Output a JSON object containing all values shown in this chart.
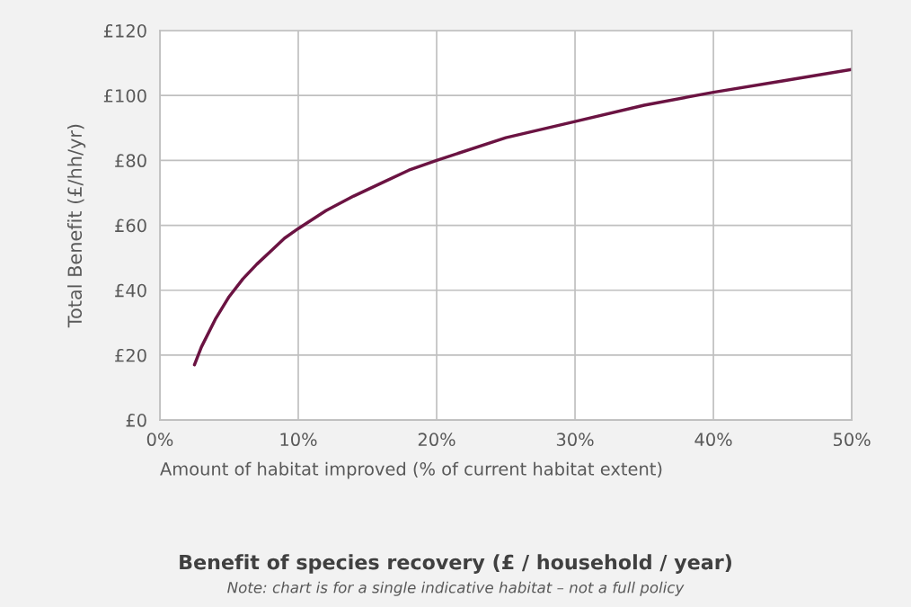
{
  "chart_data": {
    "type": "line",
    "title": "Benefit of species recovery (£ / household / year)",
    "annotations": [
      "Note: chart is for a single indicative habitat – not a full policy"
    ],
    "xlabel": "Amount of habitat improved (% of current habitat extent)",
    "ylabel": "Total Benefit (£/hh/yr)",
    "x": [
      2.5,
      3,
      4,
      5,
      6,
      7,
      8,
      9,
      10,
      12,
      14,
      16,
      18,
      20,
      25,
      30,
      35,
      40,
      45,
      50
    ],
    "series": [
      {
        "color": "#6b1342",
        "values": [
          17,
          22.5,
          31,
          38,
          43.5,
          48,
          52,
          56,
          59,
          64.5,
          69,
          73,
          77,
          80,
          87,
          92,
          97,
          101,
          104.5,
          108
        ]
      }
    ],
    "xlim": [
      0,
      50
    ],
    "xticks": [
      {
        "value": 0,
        "label": "0%"
      },
      {
        "value": 10,
        "label": "10%"
      },
      {
        "value": 20,
        "label": "20%"
      },
      {
        "value": 30,
        "label": "30%"
      },
      {
        "value": 40,
        "label": "40%"
      },
      {
        "value": 50,
        "label": "50%"
      }
    ],
    "ylim": [
      0,
      120
    ],
    "yticks": [
      {
        "value": 0,
        "label": "£0"
      },
      {
        "value": 20,
        "label": "£20"
      },
      {
        "value": 40,
        "label": "£40"
      },
      {
        "value": 60,
        "label": "£60"
      },
      {
        "value": 80,
        "label": "£80"
      },
      {
        "value": 100,
        "label": "£100"
      },
      {
        "value": 120,
        "label": "£120"
      }
    ],
    "grid": true,
    "marker": "none",
    "line_style": "solid",
    "legend": false
  }
}
